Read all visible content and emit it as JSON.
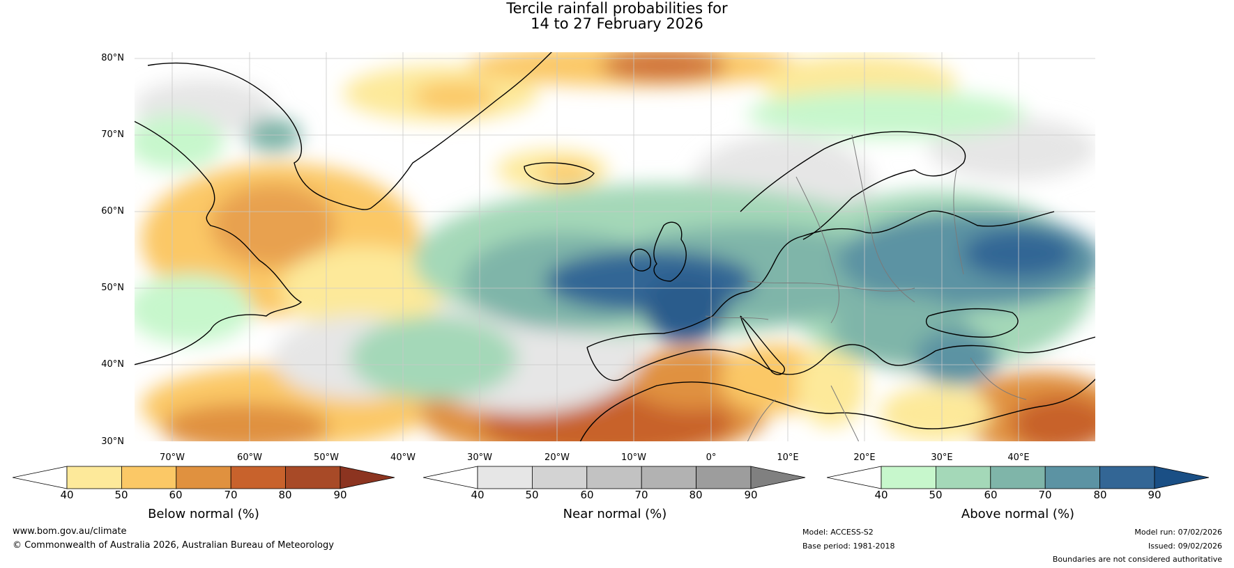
{
  "title": {
    "line1": "Tercile rainfall probabilities for",
    "line2": "14 to 27 February 2026"
  },
  "map": {
    "lat_labels": [
      "80°N",
      "70°N",
      "60°N",
      "50°N",
      "40°N",
      "30°N"
    ],
    "lon_labels": [
      "70°W",
      "60°W",
      "50°W",
      "40°W",
      "30°W",
      "20°W",
      "10°W",
      "0°",
      "10°E",
      "20°E",
      "30°E",
      "40°E"
    ]
  },
  "colorbars": {
    "below": {
      "label": "Below normal (%)",
      "ticks": [
        "40",
        "50",
        "60",
        "70",
        "80",
        "90"
      ],
      "colors": [
        "#ffffff",
        "#fde99a",
        "#fbc866",
        "#e0913f",
        "#c8622c",
        "#a84a27",
        "#8c3420"
      ]
    },
    "near": {
      "label": "Near normal (%)",
      "ticks": [
        "40",
        "50",
        "60",
        "70",
        "80",
        "90"
      ],
      "colors": [
        "#ffffff",
        "#e6e6e6",
        "#d3d3d3",
        "#c2c2c2",
        "#b2b2b2",
        "#9d9d9d",
        "#808080"
      ]
    },
    "above": {
      "label": "Above normal (%)",
      "ticks": [
        "40",
        "50",
        "60",
        "70",
        "80",
        "90"
      ],
      "colors": [
        "#ffffff",
        "#c7f7cc",
        "#a4d8b8",
        "#7fb5a9",
        "#5c93a3",
        "#336695",
        "#1a4f85"
      ]
    }
  },
  "footer": {
    "website": "www.bom.gov.au/climate",
    "copyright": "© Commonwealth of Australia 2026, Australian Bureau of Meteorology",
    "model": "Model: ACCESS-S2",
    "base_period": "Base period: 1981-2018",
    "model_run": "Model run: 07/02/2026",
    "issued": "Issued: 09/02/2026",
    "disclaimer": "Boundaries are not considered authoritative"
  }
}
